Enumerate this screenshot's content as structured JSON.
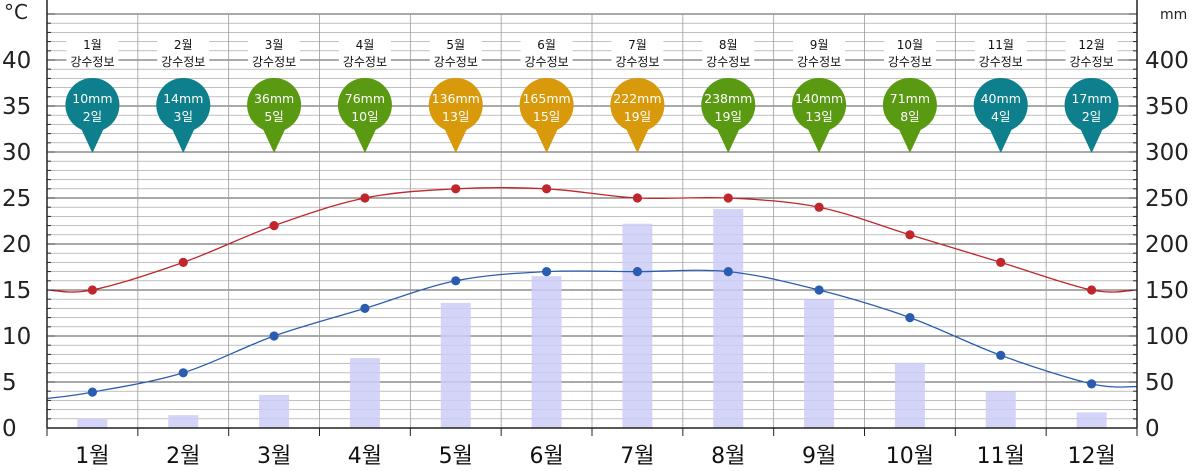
{
  "chart_data": {
    "type": "bar",
    "categories": [
      "1월",
      "2월",
      "3월",
      "4월",
      "5월",
      "6월",
      "7월",
      "8월",
      "9월",
      "10월",
      "11월",
      "12월"
    ],
    "left_axis": {
      "unit": "°C",
      "ylim": [
        0,
        45
      ],
      "ticks": [
        0,
        5,
        10,
        15,
        20,
        25,
        30,
        35,
        40
      ]
    },
    "right_axis": {
      "unit": "mm",
      "ylim": [
        0,
        450
      ],
      "ticks": [
        0,
        50,
        100,
        150,
        200,
        250,
        300,
        350,
        400
      ]
    },
    "grid": true,
    "series": [
      {
        "type": "bar",
        "axis": "right",
        "values": [
          10,
          14,
          36,
          76,
          136,
          165,
          222,
          238,
          140,
          71,
          40,
          17
        ],
        "color": "#ccccf8"
      },
      {
        "type": "line",
        "axis": "left",
        "values": [
          15,
          18,
          22,
          25,
          26,
          26,
          25,
          25,
          24,
          21,
          18,
          15
        ],
        "color": "#c0262c"
      },
      {
        "type": "line",
        "axis": "left",
        "values": [
          3.9,
          6,
          10,
          13,
          16,
          17,
          17,
          17,
          15,
          12,
          7.9,
          4.8
        ],
        "color": "#2a5db0"
      }
    ],
    "badges": [
      {
        "header_line1": "1월",
        "header_line2": "강수정보",
        "amount": "10mm",
        "days": "2일",
        "color": "#0e7f8c"
      },
      {
        "header_line1": "2월",
        "header_line2": "강수정보",
        "amount": "14mm",
        "days": "3일",
        "color": "#0e7f8c"
      },
      {
        "header_line1": "3월",
        "header_line2": "강수정보",
        "amount": "36mm",
        "days": "5일",
        "color": "#5a9a12"
      },
      {
        "header_line1": "4월",
        "header_line2": "강수정보",
        "amount": "76mm",
        "days": "10일",
        "color": "#5a9a12"
      },
      {
        "header_line1": "5월",
        "header_line2": "강수정보",
        "amount": "136mm",
        "days": "13일",
        "color": "#d89a0a"
      },
      {
        "header_line1": "6월",
        "header_line2": "강수정보",
        "amount": "165mm",
        "days": "15일",
        "color": "#d89a0a"
      },
      {
        "header_line1": "7월",
        "header_line2": "강수정보",
        "amount": "222mm",
        "days": "19일",
        "color": "#d89a0a"
      },
      {
        "header_line1": "8월",
        "header_line2": "강수정보",
        "amount": "238mm",
        "days": "19일",
        "color": "#5a9a12"
      },
      {
        "header_line1": "9월",
        "header_line2": "강수정보",
        "amount": "140mm",
        "days": "13일",
        "color": "#5a9a12"
      },
      {
        "header_line1": "10월",
        "header_line2": "강수정보",
        "amount": "71mm",
        "days": "8일",
        "color": "#5a9a12"
      },
      {
        "header_line1": "11월",
        "header_line2": "강수정보",
        "amount": "40mm",
        "days": "4일",
        "color": "#0e7f8c"
      },
      {
        "header_line1": "12월",
        "header_line2": "강수정보",
        "amount": "17mm",
        "days": "2일",
        "color": "#0e7f8c"
      }
    ]
  }
}
